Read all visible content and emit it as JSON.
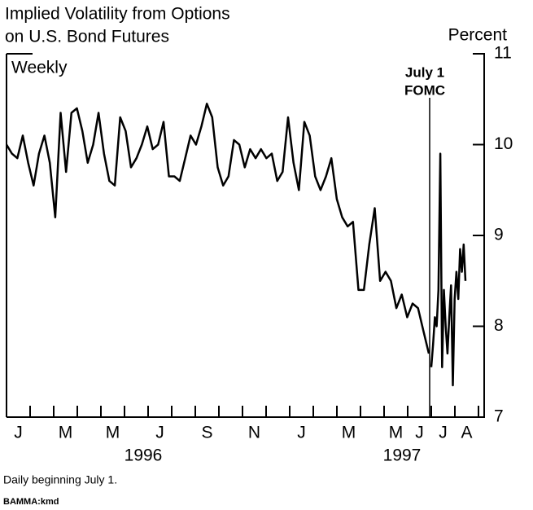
{
  "chart_data": {
    "type": "line",
    "title": [
      "Implied Volatility from Options",
      "on U.S. Bond Futures"
    ],
    "subtitle": "Weekly",
    "y_axis_label": "Percent",
    "annotation": [
      "July 1",
      "FOMC"
    ],
    "footnote": "Daily beginning July 1.",
    "source": "BAMMA:kmd",
    "years": [
      "1996",
      "1997"
    ],
    "categories": [
      "J",
      null,
      "M",
      null,
      "M",
      null,
      "J",
      null,
      "S",
      null,
      "N",
      null,
      "J",
      null,
      "M",
      null,
      "M",
      "J",
      "J",
      "A"
    ],
    "color": "#000000",
    "weekly_values": [
      10.0,
      9.9,
      9.85,
      10.1,
      9.8,
      9.55,
      9.9,
      10.1,
      9.8,
      9.2,
      10.35,
      9.7,
      10.35,
      10.4,
      10.15,
      9.8,
      10.0,
      10.35,
      9.9,
      9.6,
      9.55,
      10.3,
      10.15,
      9.75,
      9.85,
      10.0,
      10.2,
      9.95,
      10.0,
      10.25,
      9.65,
      9.65,
      9.6,
      9.85,
      10.1,
      10.0,
      10.2,
      10.45,
      10.3,
      9.75,
      9.55,
      9.65,
      10.05,
      10.0,
      9.75,
      9.95,
      9.85,
      9.95,
      9.85,
      9.9,
      9.6,
      9.7,
      10.3,
      9.8,
      9.5,
      10.25,
      10.1,
      9.65,
      9.5,
      9.65,
      9.85,
      9.4,
      9.2,
      9.1,
      9.15,
      8.4,
      8.4,
      8.9,
      9.3,
      8.5,
      8.6,
      8.5,
      8.2,
      8.35,
      8.1,
      8.25,
      8.2,
      7.95,
      7.7
    ],
    "daily_values": [
      7.55,
      7.8,
      8.1,
      8.0,
      8.4,
      9.9,
      7.55,
      8.4,
      8.0,
      7.7,
      8.1,
      8.45,
      7.35,
      8.3,
      8.6,
      8.3,
      8.85,
      8.6,
      8.9,
      8.5
    ],
    "ylim": [
      7,
      11
    ],
    "yticks": [
      7,
      8,
      9,
      10,
      11
    ]
  }
}
